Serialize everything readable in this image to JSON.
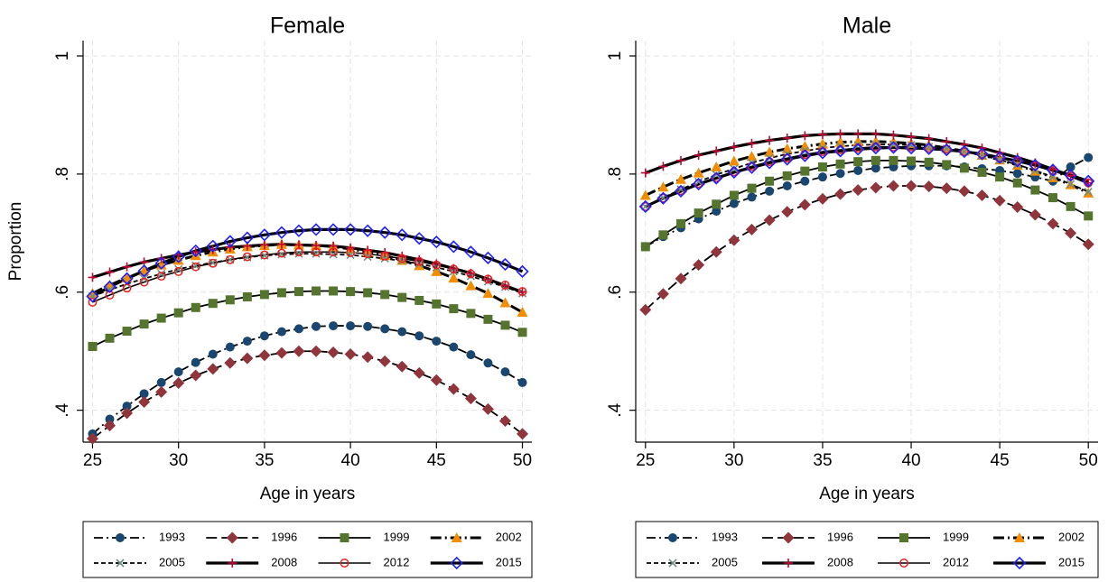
{
  "chart_data": [
    {
      "type": "line",
      "title": "Female",
      "xlabel": "Age in years",
      "ylabel": "Proportion",
      "x": [
        25,
        26,
        27,
        28,
        29,
        30,
        31,
        32,
        33,
        34,
        35,
        36,
        37,
        38,
        39,
        40,
        41,
        42,
        43,
        44,
        45,
        46,
        47,
        48,
        49,
        50
      ],
      "xlim": [
        24.45,
        50.55
      ],
      "xticks": [
        25,
        30,
        35,
        40,
        45,
        50
      ],
      "ylim": [
        0.346,
        1.026
      ],
      "yticks": [
        {
          "value": 0.4,
          "label": ".4"
        },
        {
          "value": 0.6,
          "label": ".6"
        },
        {
          "value": 0.8,
          "label": ".8"
        },
        1
      ],
      "grid": true,
      "legend": "bottom",
      "series": [
        {
          "name": "1993",
          "color": "#1a476f",
          "marker": "circle",
          "values": [
            0.36,
            0.385,
            0.407,
            0.428,
            0.447,
            0.465,
            0.481,
            0.495,
            0.507,
            0.517,
            0.526,
            0.533,
            0.538,
            0.542,
            0.543,
            0.543,
            0.542,
            0.538,
            0.533,
            0.526,
            0.517,
            0.507,
            0.494,
            0.48,
            0.465,
            0.447
          ]
        },
        {
          "name": "1996",
          "color": "#90353b",
          "marker": "diamond",
          "values": [
            0.352,
            0.374,
            0.395,
            0.414,
            0.431,
            0.446,
            0.459,
            0.47,
            0.48,
            0.488,
            0.493,
            0.497,
            0.5,
            0.5,
            0.498,
            0.495,
            0.49,
            0.483,
            0.474,
            0.463,
            0.451,
            0.436,
            0.42,
            0.402,
            0.382,
            0.36
          ]
        },
        {
          "name": "1999",
          "color": "#55752f",
          "marker": "square",
          "values": [
            0.508,
            0.522,
            0.534,
            0.546,
            0.556,
            0.565,
            0.574,
            0.581,
            0.587,
            0.592,
            0.596,
            0.599,
            0.601,
            0.602,
            0.602,
            0.601,
            0.599,
            0.596,
            0.591,
            0.586,
            0.58,
            0.572,
            0.564,
            0.554,
            0.544,
            0.532
          ]
        },
        {
          "name": "2002",
          "color": "#f28c00",
          "marker": "triangle",
          "values": [
            0.598,
            0.612,
            0.624,
            0.636,
            0.646,
            0.654,
            0.662,
            0.668,
            0.673,
            0.677,
            0.679,
            0.681,
            0.68,
            0.679,
            0.677,
            0.673,
            0.668,
            0.662,
            0.654,
            0.645,
            0.635,
            0.624,
            0.611,
            0.598,
            0.582,
            0.566
          ]
        },
        {
          "name": "2005",
          "color": "#6e8e84",
          "marker": "x",
          "values": [
            0.593,
            0.604,
            0.614,
            0.623,
            0.631,
            0.639,
            0.645,
            0.65,
            0.655,
            0.659,
            0.662,
            0.664,
            0.665,
            0.665,
            0.664,
            0.663,
            0.66,
            0.657,
            0.653,
            0.648,
            0.642,
            0.635,
            0.627,
            0.618,
            0.609,
            0.598
          ]
        },
        {
          "name": "2008",
          "color": "#c10534",
          "marker": "plus",
          "values": [
            0.625,
            0.634,
            0.643,
            0.651,
            0.657,
            0.663,
            0.668,
            0.672,
            0.676,
            0.678,
            0.68,
            0.681,
            0.68,
            0.679,
            0.678,
            0.675,
            0.671,
            0.667,
            0.661,
            0.655,
            0.648,
            0.64,
            0.632,
            0.622,
            0.611,
            0.6
          ]
        },
        {
          "name": "2012",
          "color": "#e8201e",
          "marker": "circle-hollow",
          "values": [
            0.583,
            0.595,
            0.607,
            0.617,
            0.627,
            0.635,
            0.643,
            0.649,
            0.655,
            0.66,
            0.663,
            0.666,
            0.668,
            0.668,
            0.668,
            0.667,
            0.665,
            0.661,
            0.657,
            0.652,
            0.646,
            0.639,
            0.631,
            0.622,
            0.612,
            0.601
          ]
        },
        {
          "name": "2015",
          "color": "#1f1fff",
          "marker": "diamond-hollow",
          "values": [
            0.593,
            0.609,
            0.623,
            0.636,
            0.649,
            0.66,
            0.67,
            0.678,
            0.686,
            0.692,
            0.697,
            0.701,
            0.704,
            0.706,
            0.706,
            0.706,
            0.704,
            0.701,
            0.697,
            0.691,
            0.685,
            0.677,
            0.668,
            0.658,
            0.647,
            0.635
          ]
        }
      ]
    },
    {
      "type": "line",
      "title": "Male",
      "xlabel": "Age in years",
      "x": [
        25,
        26,
        27,
        28,
        29,
        30,
        31,
        32,
        33,
        34,
        35,
        36,
        37,
        38,
        39,
        40,
        41,
        42,
        43,
        44,
        45,
        46,
        47,
        48,
        49,
        50
      ],
      "xlim": [
        24.45,
        50.55
      ],
      "xticks": [
        25,
        30,
        35,
        40,
        45,
        50
      ],
      "ylim": [
        0.346,
        1.026
      ],
      "yticks": [
        {
          "value": 0.4,
          "label": ".4"
        },
        {
          "value": 0.6,
          "label": ".6"
        },
        {
          "value": 0.8,
          "label": ".8"
        },
        1
      ],
      "grid": true,
      "legend": "bottom",
      "series": [
        {
          "name": "1993",
          "color": "#1a476f",
          "marker": "circle",
          "values": [
            0.677,
            0.694,
            0.709,
            0.724,
            0.737,
            0.75,
            0.761,
            0.771,
            0.78,
            0.788,
            0.795,
            0.801,
            0.806,
            0.81,
            0.812,
            0.814,
            0.814,
            0.814,
            0.812,
            0.809,
            0.806,
            0.801,
            0.795,
            0.788,
            0.812,
            0.828
          ]
        },
        {
          "name": "1996",
          "color": "#90353b",
          "marker": "diamond",
          "values": [
            0.57,
            0.597,
            0.623,
            0.646,
            0.668,
            0.688,
            0.706,
            0.722,
            0.736,
            0.748,
            0.758,
            0.766,
            0.773,
            0.777,
            0.78,
            0.78,
            0.779,
            0.776,
            0.771,
            0.764,
            0.755,
            0.744,
            0.731,
            0.716,
            0.7,
            0.681
          ]
        },
        {
          "name": "1999",
          "color": "#55752f",
          "marker": "square",
          "values": [
            0.677,
            0.697,
            0.716,
            0.734,
            0.749,
            0.764,
            0.776,
            0.788,
            0.797,
            0.805,
            0.812,
            0.817,
            0.821,
            0.823,
            0.823,
            0.822,
            0.82,
            0.816,
            0.81,
            0.803,
            0.795,
            0.785,
            0.773,
            0.76,
            0.745,
            0.729
          ]
        },
        {
          "name": "2002",
          "color": "#f28c00",
          "marker": "triangle",
          "values": [
            0.764,
            0.778,
            0.791,
            0.802,
            0.812,
            0.822,
            0.83,
            0.837,
            0.843,
            0.847,
            0.851,
            0.854,
            0.855,
            0.855,
            0.854,
            0.852,
            0.849,
            0.844,
            0.839,
            0.832,
            0.824,
            0.815,
            0.805,
            0.794,
            0.782,
            0.768
          ]
        },
        {
          "name": "2005",
          "color": "#6e8e84",
          "marker": "x",
          "values": [
            0.745,
            0.76,
            0.774,
            0.787,
            0.799,
            0.809,
            0.819,
            0.827,
            0.834,
            0.839,
            0.844,
            0.847,
            0.849,
            0.85,
            0.85,
            0.849,
            0.846,
            0.843,
            0.838,
            0.832,
            0.824,
            0.816,
            0.806,
            0.795,
            0.783,
            0.77
          ]
        },
        {
          "name": "2008",
          "color": "#c10534",
          "marker": "plus",
          "values": [
            0.802,
            0.813,
            0.823,
            0.832,
            0.839,
            0.846,
            0.852,
            0.857,
            0.861,
            0.865,
            0.867,
            0.868,
            0.868,
            0.868,
            0.866,
            0.863,
            0.86,
            0.855,
            0.85,
            0.844,
            0.836,
            0.828,
            0.819,
            0.808,
            0.797,
            0.785
          ]
        },
        {
          "name": "2012",
          "color": "#e8201e",
          "marker": "circle-hollow",
          "values": [
            0.745,
            0.759,
            0.772,
            0.784,
            0.794,
            0.804,
            0.813,
            0.821,
            0.827,
            0.833,
            0.838,
            0.841,
            0.844,
            0.846,
            0.846,
            0.846,
            0.844,
            0.842,
            0.838,
            0.834,
            0.828,
            0.822,
            0.814,
            0.805,
            0.796,
            0.785
          ]
        },
        {
          "name": "2015",
          "color": "#1f1fff",
          "marker": "diamond-hollow",
          "values": [
            0.745,
            0.759,
            0.771,
            0.783,
            0.793,
            0.803,
            0.811,
            0.819,
            0.825,
            0.831,
            0.836,
            0.839,
            0.842,
            0.844,
            0.845,
            0.844,
            0.843,
            0.841,
            0.838,
            0.834,
            0.828,
            0.822,
            0.815,
            0.807,
            0.798,
            0.788
          ]
        }
      ]
    }
  ]
}
